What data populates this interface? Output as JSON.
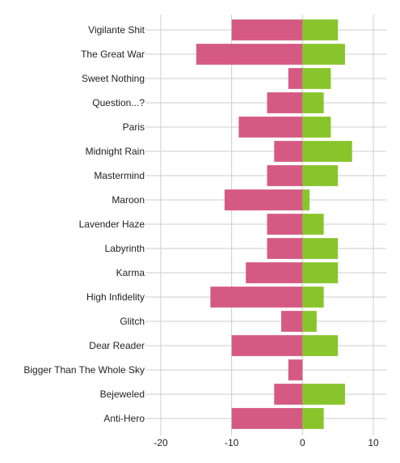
{
  "chart_data": {
    "type": "bar",
    "orientation": "horizontal",
    "stacked": true,
    "categories": [
      "Vigilante Shit",
      "The Great War",
      "Sweet Nothing",
      "Question...?",
      "Paris",
      "Midnight Rain",
      "Mastermind",
      "Maroon",
      "Lavender Haze",
      "Labyrinth",
      "Karma",
      "High Infidelity",
      "Glitch",
      "Dear Reader",
      "Bigger Than The Whole Sky",
      "Bejeweled",
      "Anti-Hero"
    ],
    "series": [
      {
        "color": "#d45a84",
        "values": [
          -10,
          -15,
          -2,
          -5,
          -9,
          -4,
          -5,
          -11,
          -5,
          -5,
          -8,
          -13,
          -3,
          -10,
          -2,
          -4,
          -10
        ]
      },
      {
        "color": "#88c52b",
        "values": [
          5,
          6,
          4,
          3,
          4,
          7,
          5,
          1,
          3,
          5,
          5,
          3,
          2,
          5,
          0,
          6,
          3
        ]
      }
    ],
    "x_ticks": [
      "-20",
      "-10",
      "0",
      "10"
    ],
    "xlim": [
      -20,
      10
    ],
    "grid": true,
    "title": "",
    "xlabel": "",
    "ylabel": ""
  }
}
